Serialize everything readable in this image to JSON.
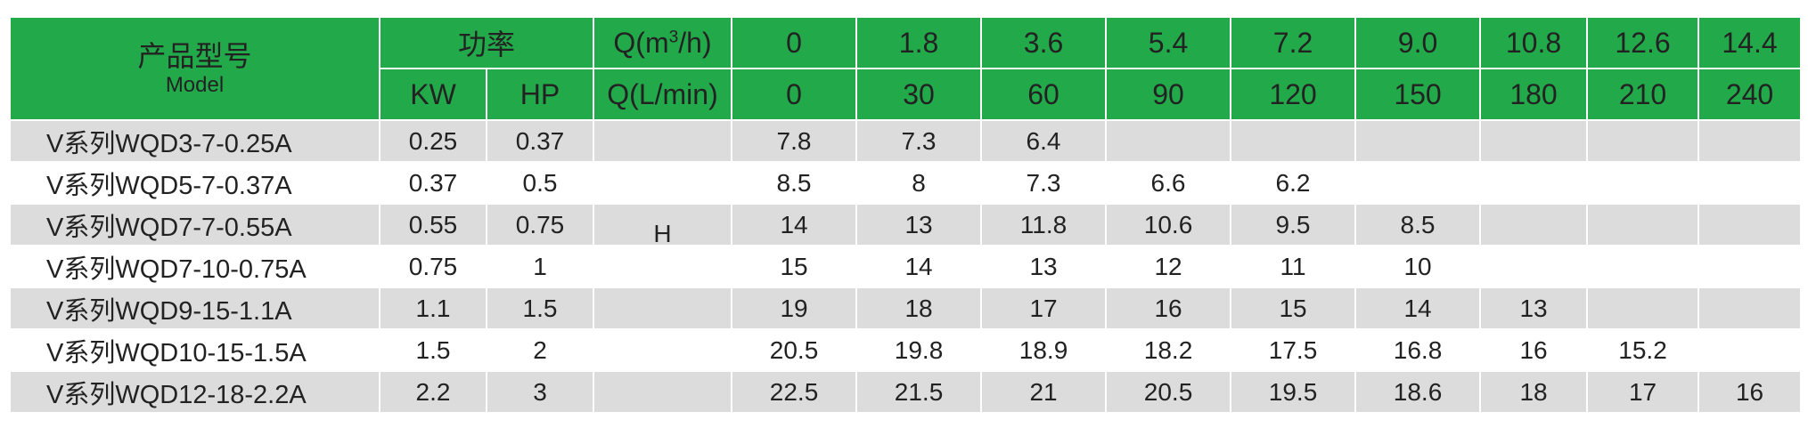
{
  "header": {
    "model_cn": "产品型号",
    "model_en": "Model",
    "power_label": "功率",
    "kw_label": "KW",
    "hp_label": "HP",
    "q1_prefix": "Q(m",
    "q1_sup": "3",
    "q1_suffix": "/h)",
    "q2_label": "Q(L/min)",
    "flow_m3h": [
      "0",
      "1.8",
      "3.6",
      "5.4",
      "7.2",
      "9.0",
      "10.8",
      "12.6",
      "14.4"
    ],
    "flow_lmin": [
      "0",
      "30",
      "60",
      "90",
      "120",
      "150",
      "180",
      "210",
      "240"
    ]
  },
  "h_label": "H",
  "rows": [
    {
      "model": "V系列WQD3-7-0.25A",
      "kw": "0.25",
      "hp": "0.37",
      "h": [
        "7.8",
        "7.3",
        "6.4",
        "",
        "",
        "",
        "",
        "",
        ""
      ]
    },
    {
      "model": "V系列WQD5-7-0.37A",
      "kw": "0.37",
      "hp": "0.5",
      "h": [
        "8.5",
        "8",
        "7.3",
        "6.6",
        "6.2",
        "",
        "",
        "",
        ""
      ]
    },
    {
      "model": "V系列WQD7-7-0.55A",
      "kw": "0.55",
      "hp": "0.75",
      "h": [
        "14",
        "13",
        "11.8",
        "10.6",
        "9.5",
        "8.5",
        "",
        "",
        ""
      ]
    },
    {
      "model": "V系列WQD7-10-0.75A",
      "kw": "0.75",
      "hp": "1",
      "h": [
        "15",
        "14",
        "13",
        "12",
        "11",
        "10",
        "",
        "",
        ""
      ]
    },
    {
      "model": "V系列WQD9-15-1.1A",
      "kw": "1.1",
      "hp": "1.5",
      "h": [
        "19",
        "18",
        "17",
        "16",
        "15",
        "14",
        "13",
        "",
        ""
      ]
    },
    {
      "model": "V系列WQD10-15-1.5A",
      "kw": "1.5",
      "hp": "2",
      "h": [
        "20.5",
        "19.8",
        "18.9",
        "18.2",
        "17.5",
        "16.8",
        "16",
        "15.2",
        ""
      ]
    },
    {
      "model": "V系列WQD12-18-2.2A",
      "kw": "2.2",
      "hp": "3",
      "h": [
        "22.5",
        "21.5",
        "21",
        "20.5",
        "19.5",
        "18.6",
        "18",
        "17",
        "16"
      ]
    }
  ]
}
